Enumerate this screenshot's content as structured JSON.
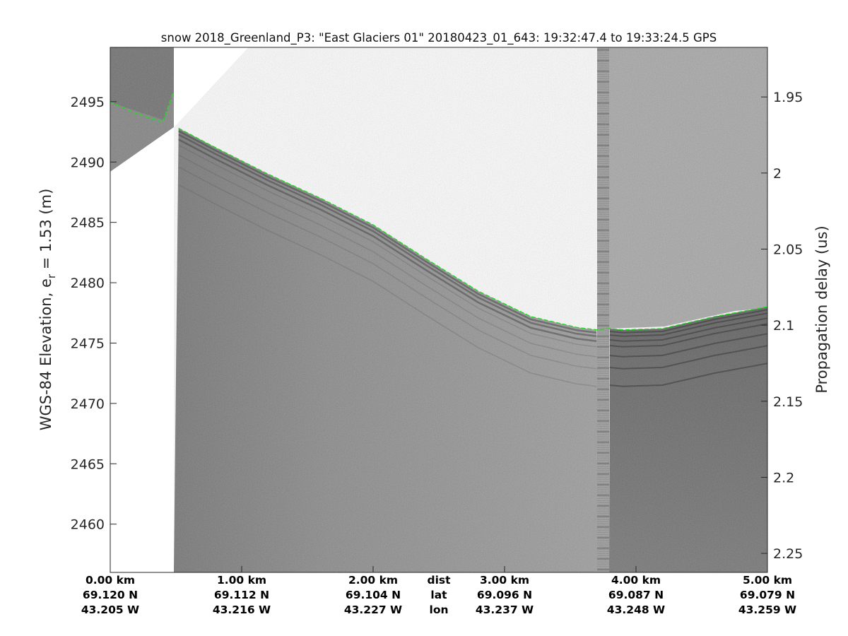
{
  "chart_data": {
    "type": "heatmap",
    "title": "snow 2018_Greenland_P3: \"East Glaciers 01\"  20180423_01_643: 19:32:47.4 to 19:33:24.5 GPS",
    "ylabel_left": "WGS-84 Elevation, e",
    "ylabel_left_sub": "r",
    "ylabel_left_tail": " = 1.53 (m)",
    "ylabel_right": "Propagation delay (us)",
    "ylim_left": [
      2456,
      2499.5
    ],
    "ylim_right": [
      1.9174,
      2.2625
    ],
    "xlim_km": [
      0,
      5
    ],
    "left_ticks": [
      {
        "value": 2495,
        "label": "2495"
      },
      {
        "value": 2490,
        "label": "2490"
      },
      {
        "value": 2485,
        "label": "2485"
      },
      {
        "value": 2480,
        "label": "2480"
      },
      {
        "value": 2475,
        "label": "2475"
      },
      {
        "value": 2470,
        "label": "2470"
      },
      {
        "value": 2465,
        "label": "2465"
      },
      {
        "value": 2460,
        "label": "2460"
      }
    ],
    "right_ticks": [
      {
        "value": 1.95,
        "label": "1.95"
      },
      {
        "value": 2.0,
        "label": "2"
      },
      {
        "value": 2.05,
        "label": "2.05"
      },
      {
        "value": 2.1,
        "label": "2.1"
      },
      {
        "value": 2.15,
        "label": "2.15"
      },
      {
        "value": 2.2,
        "label": "2.2"
      },
      {
        "value": 2.25,
        "label": "2.25"
      }
    ],
    "bottom_columns": [
      {
        "km": 0,
        "dist": "0.00 km",
        "lat": "69.120 N",
        "lon": "43.205 W"
      },
      {
        "km": 1,
        "dist": "1.00 km",
        "lat": "69.112 N",
        "lon": "43.216 W"
      },
      {
        "km": 2,
        "dist": "2.00 km",
        "lat": "69.104 N",
        "lon": "43.227 W"
      },
      {
        "km": 3,
        "dist": "3.00 km",
        "lat": "69.096 N",
        "lon": "43.237 W"
      },
      {
        "km": 4,
        "dist": "4.00 km",
        "lat": "69.087 N",
        "lon": "43.248 W"
      },
      {
        "km": 5,
        "dist": "5.00 km",
        "lat": "69.079 N",
        "lon": "43.259 W"
      }
    ],
    "row_labels": {
      "km": 2.5,
      "dist": "dist",
      "lat": "lat",
      "lon": "lon"
    },
    "surface_trace": {
      "color": "#22dd22",
      "x_km": [
        0,
        0.2,
        0.4,
        0.48,
        0.52,
        0.8,
        1.2,
        1.6,
        2.0,
        2.4,
        2.8,
        3.2,
        3.55,
        3.7,
        3.8,
        3.9,
        4.2,
        4.6,
        5.0
      ],
      "elevation_m": [
        2495.0,
        2494.0,
        2493.3,
        2495.8,
        2492.8,
        2491.2,
        2489.0,
        2487.0,
        2484.8,
        2482.0,
        2479.3,
        2477.2,
        2476.3,
        2476.1,
        2476.2,
        2476.1,
        2476.2,
        2477.2,
        2478.0
      ]
    }
  }
}
